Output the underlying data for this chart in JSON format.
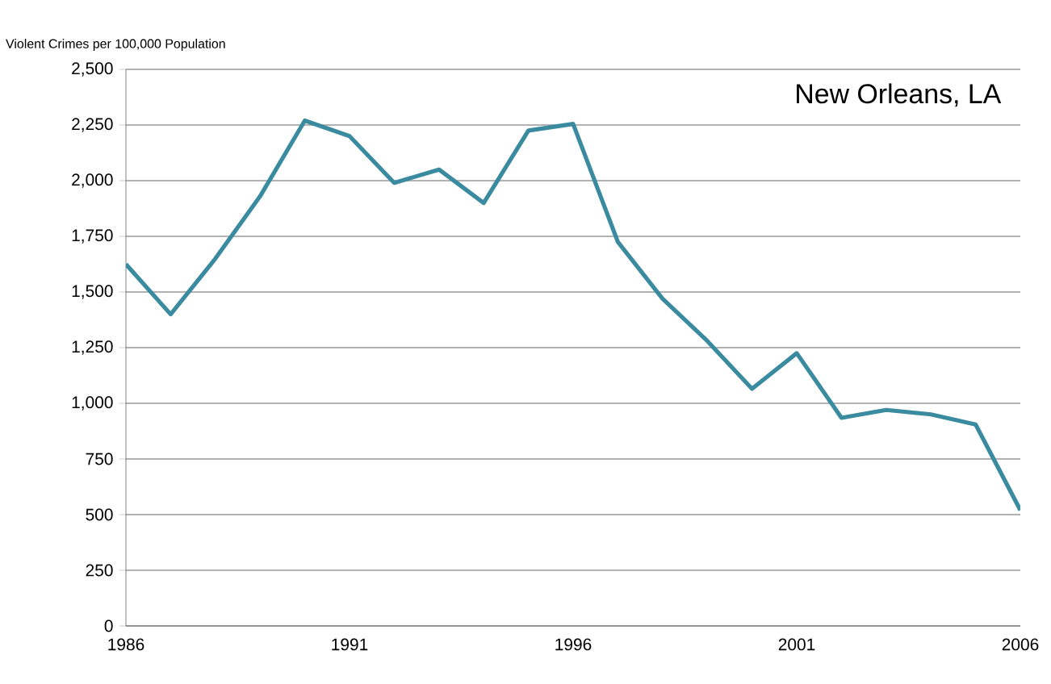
{
  "chart_data": {
    "type": "line",
    "title": "New Orleans, LA",
    "ylabel": "Violent Crimes per 100,000 Population",
    "x": [
      1986,
      1987,
      1988,
      1989,
      1990,
      1991,
      1992,
      1993,
      1994,
      1995,
      1996,
      1997,
      1998,
      1999,
      2000,
      2001,
      2002,
      2003,
      2004,
      2005,
      2006
    ],
    "series": [
      {
        "color": "#3a8ba0",
        "values": [
          1625,
          1400,
          1650,
          1930,
          2270,
          2200,
          1990,
          2050,
          1900,
          2225,
          2255,
          1725,
          1470,
          1280,
          1065,
          1225,
          935,
          970,
          950,
          905,
          520
        ]
      }
    ],
    "xlim": [
      1986,
      2006
    ],
    "xticks": [
      1986,
      1991,
      1996,
      2001,
      2006
    ],
    "ylim": [
      0,
      2500
    ],
    "yticks": [
      0,
      250,
      500,
      750,
      {
        "value": 1000,
        "label": "1,000"
      },
      {
        "value": 1250,
        "label": "1,250"
      },
      {
        "value": 1500,
        "label": "1,500"
      },
      {
        "value": 1750,
        "label": "1,750"
      },
      {
        "value": 2000,
        "label": "2,000"
      },
      {
        "value": 2250,
        "label": "2,250"
      },
      {
        "value": 2500,
        "label": "2,500"
      }
    ],
    "grid": "y",
    "marker": "none",
    "line_style": "solid"
  }
}
